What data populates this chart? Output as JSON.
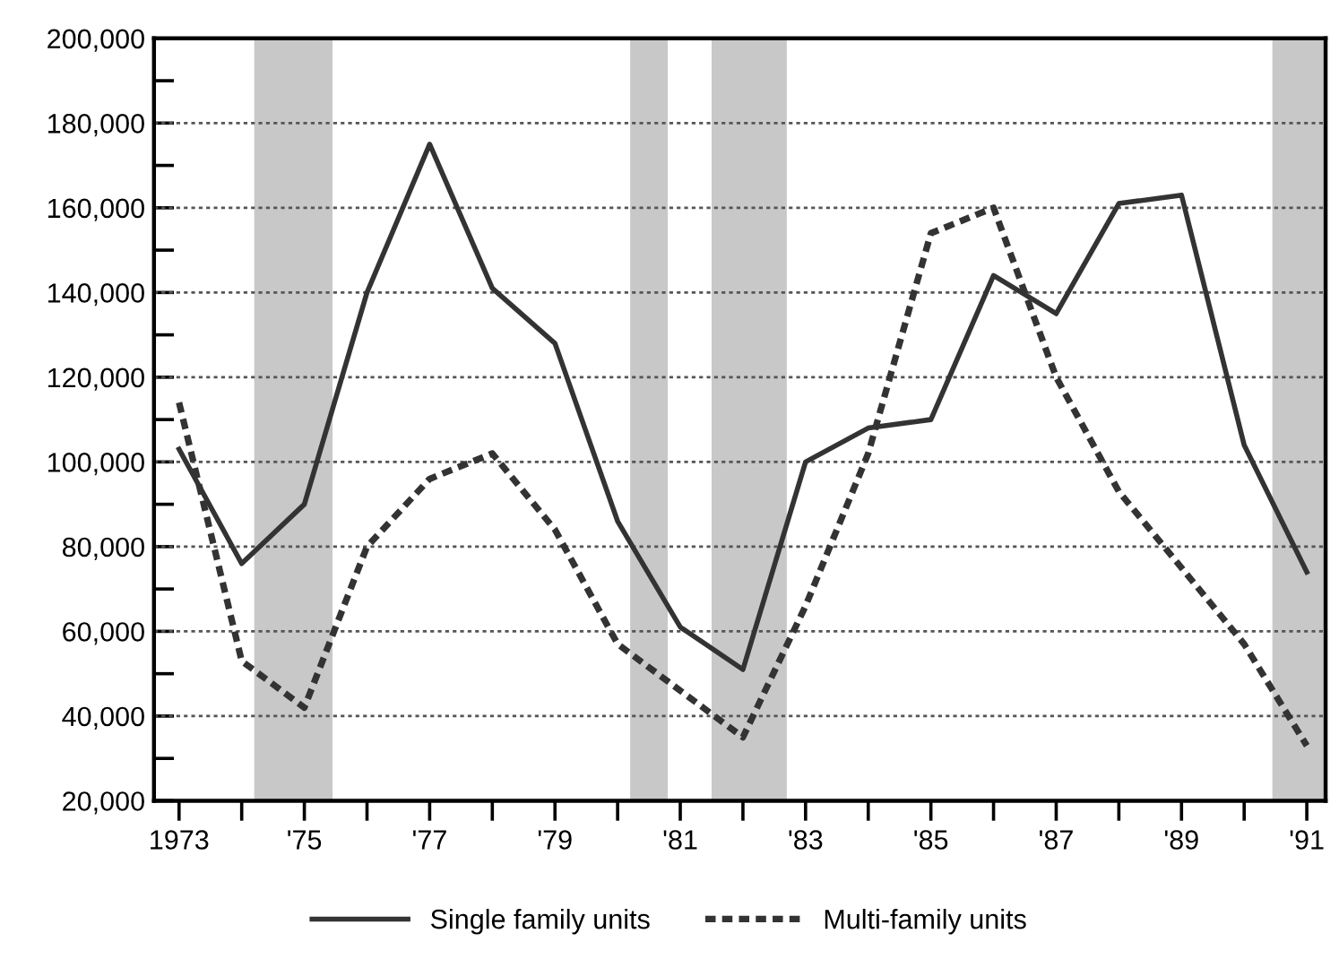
{
  "chart_data": {
    "type": "line",
    "x": [
      1973,
      1974,
      1975,
      1976,
      1977,
      1978,
      1979,
      1980,
      1981,
      1982,
      1983,
      1984,
      1985,
      1986,
      1987,
      1988,
      1989,
      1990,
      1991
    ],
    "series": [
      {
        "name": "Single family units",
        "color": "#333333",
        "line_style": "solid",
        "values": [
          103000,
          76000,
          90000,
          140000,
          175000,
          141000,
          128000,
          86000,
          61000,
          51000,
          100000,
          108000,
          110000,
          144000,
          135000,
          161000,
          163000,
          104000,
          74000
        ]
      },
      {
        "name": "Multi-family units",
        "color": "#333333",
        "line_style": "dashed",
        "values": [
          114000,
          53000,
          42000,
          80000,
          96000,
          102000,
          84000,
          57000,
          46000,
          35000,
          66000,
          102000,
          154000,
          160000,
          120000,
          93000,
          75000,
          57000,
          33000
        ]
      }
    ],
    "xlim": [
      1972.6,
      1991.3
    ],
    "xticks": [
      {
        "value": 1973,
        "label": "1973"
      },
      {
        "value": 1974,
        "label": null
      },
      {
        "value": 1975,
        "label": "'75"
      },
      {
        "value": 1976,
        "label": null
      },
      {
        "value": 1977,
        "label": "'77"
      },
      {
        "value": 1978,
        "label": null
      },
      {
        "value": 1979,
        "label": "'79"
      },
      {
        "value": 1980,
        "label": null
      },
      {
        "value": 1981,
        "label": "'81"
      },
      {
        "value": 1982,
        "label": null
      },
      {
        "value": 1983,
        "label": "'83"
      },
      {
        "value": 1984,
        "label": null
      },
      {
        "value": 1985,
        "label": "'85"
      },
      {
        "value": 1986,
        "label": null
      },
      {
        "value": 1987,
        "label": "'87"
      },
      {
        "value": 1988,
        "label": null
      },
      {
        "value": 1989,
        "label": "'89"
      },
      {
        "value": 1990,
        "label": null
      },
      {
        "value": 1991,
        "label": "'91"
      }
    ],
    "ylim": [
      20000,
      200000
    ],
    "yticks": [
      {
        "value": 20000,
        "label": "20,000"
      },
      {
        "value": 30000,
        "label": null
      },
      {
        "value": 40000,
        "label": "40,000"
      },
      {
        "value": 50000,
        "label": null
      },
      {
        "value": 60000,
        "label": "60,000"
      },
      {
        "value": 70000,
        "label": null
      },
      {
        "value": 80000,
        "label": "80,000"
      },
      {
        "value": 90000,
        "label": null
      },
      {
        "value": 100000,
        "label": "100,000"
      },
      {
        "value": 110000,
        "label": null
      },
      {
        "value": 120000,
        "label": "120,000"
      },
      {
        "value": 130000,
        "label": null
      },
      {
        "value": 140000,
        "label": "140,000"
      },
      {
        "value": 150000,
        "label": null
      },
      {
        "value": 160000,
        "label": "160,000"
      },
      {
        "value": 170000,
        "label": null
      },
      {
        "value": 180000,
        "label": "180,000"
      },
      {
        "value": 190000,
        "label": null
      },
      {
        "value": 200000,
        "label": "200,000"
      }
    ],
    "bands": [
      {
        "axis": "x",
        "from": 1974.2,
        "to": 1975.45,
        "color": "#c8c8c8"
      },
      {
        "axis": "x",
        "from": 1980.2,
        "to": 1980.8,
        "color": "#c8c8c8"
      },
      {
        "axis": "x",
        "from": 1981.5,
        "to": 1982.7,
        "color": "#c8c8c8"
      },
      {
        "axis": "x",
        "from": 1990.45,
        "to": 1991.3,
        "color": "#c8c8c8"
      }
    ],
    "grid": "y",
    "legend": "bottom"
  }
}
